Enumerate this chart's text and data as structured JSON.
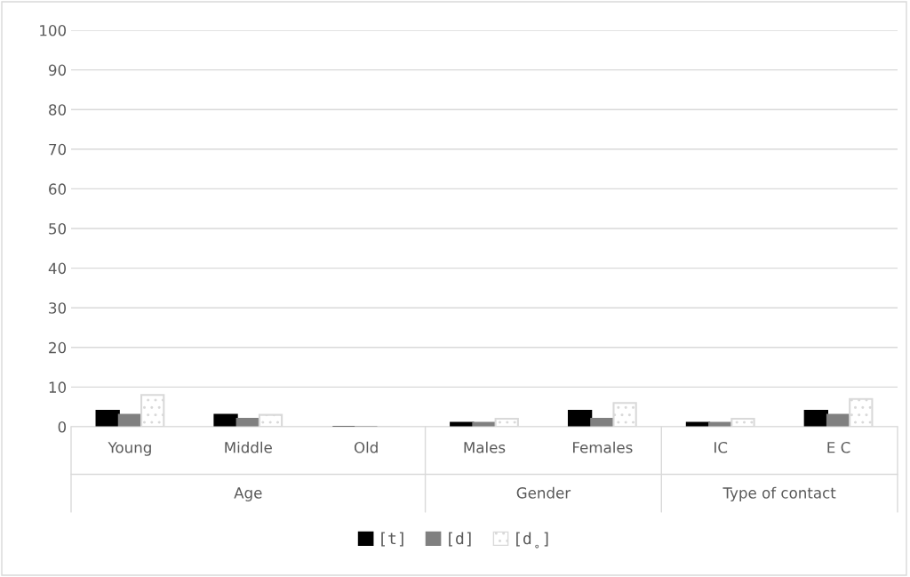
{
  "chart_data": {
    "type": "bar",
    "categories": [
      "Young",
      "Middle",
      "Old",
      "Males",
      "Females",
      "IC",
      "E C"
    ],
    "series": [
      {
        "name": "[t]",
        "color": "#000000",
        "values": [
          4,
          3,
          0,
          1,
          4,
          1,
          4
        ]
      },
      {
        "name": "[d]",
        "color": "#808080",
        "values": [
          3,
          2,
          0,
          1,
          2,
          1,
          3
        ]
      },
      {
        "name": "[d̥]",
        "color": "#d9d9d9",
        "values": [
          8,
          3,
          0,
          2,
          6,
          2,
          7
        ]
      }
    ],
    "annotations": [
      "Age",
      "Gender",
      "Type of contact"
    ],
    "ylim": [
      0,
      100
    ],
    "yticks": [
      0,
      10,
      20,
      30,
      40,
      50,
      60,
      70,
      80,
      90,
      100
    ],
    "grid": "y",
    "legend": "bottom"
  }
}
